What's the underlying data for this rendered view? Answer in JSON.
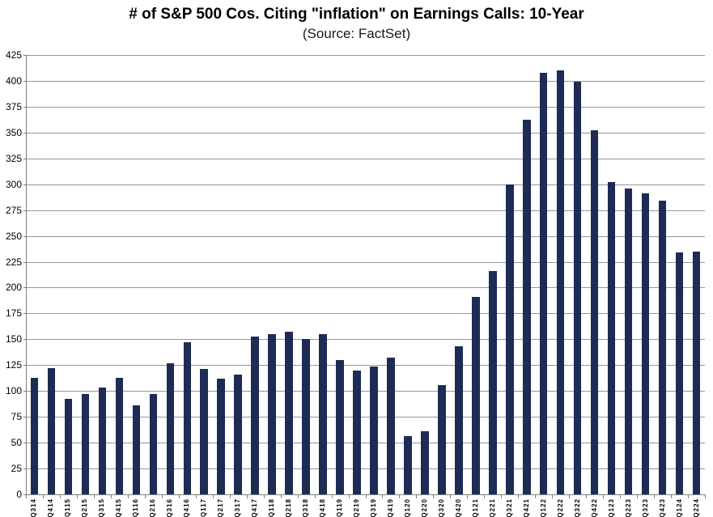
{
  "header": {
    "title": "# of S&P 500 Cos. Citing \"inflation\" on Earnings Calls: 10-Year",
    "subtitle": "(Source: FactSet)"
  },
  "chart_data": {
    "type": "bar",
    "title": "# of S&P 500 Cos. Citing \"inflation\" on Earnings Calls: 10-Year",
    "subtitle": "(Source: FactSet)",
    "categories": [
      "Q314",
      "Q414",
      "Q115",
      "Q215",
      "Q315",
      "Q415",
      "Q116",
      "Q216",
      "Q316",
      "Q416",
      "Q117",
      "Q217",
      "Q317",
      "Q417",
      "Q118",
      "Q218",
      "Q318",
      "Q418",
      "Q119",
      "Q219",
      "Q319",
      "Q419",
      "Q120",
      "Q220",
      "Q320",
      "Q420",
      "Q121",
      "Q221",
      "Q321",
      "Q421",
      "Q122",
      "Q222",
      "Q322",
      "Q422",
      "Q123",
      "Q223",
      "Q323",
      "Q423",
      "Q124",
      "Q224"
    ],
    "values": [
      113,
      122,
      92,
      97,
      103,
      113,
      86,
      97,
      127,
      147,
      121,
      112,
      116,
      153,
      155,
      157,
      150,
      155,
      130,
      120,
      124,
      132,
      56,
      61,
      106,
      143,
      191,
      216,
      300,
      362,
      408,
      410,
      399,
      352,
      302,
      296,
      291,
      284,
      234,
      235
    ],
    "xlabel": "",
    "ylabel": "",
    "ylim": [
      0,
      425
    ],
    "ytick_step": 25,
    "ytick_labels": [
      "0",
      "25",
      "50",
      "75",
      "100",
      "125",
      "150",
      "175",
      "200",
      "225",
      "250",
      "275",
      "300",
      "325",
      "350",
      "375",
      "400",
      "425"
    ],
    "grid": "horizontal",
    "legend_position": "none",
    "bar_color": "#1d2b55",
    "gridline_color": "#969696",
    "axis_color": "#808080",
    "background_color": "#ffffff"
  }
}
